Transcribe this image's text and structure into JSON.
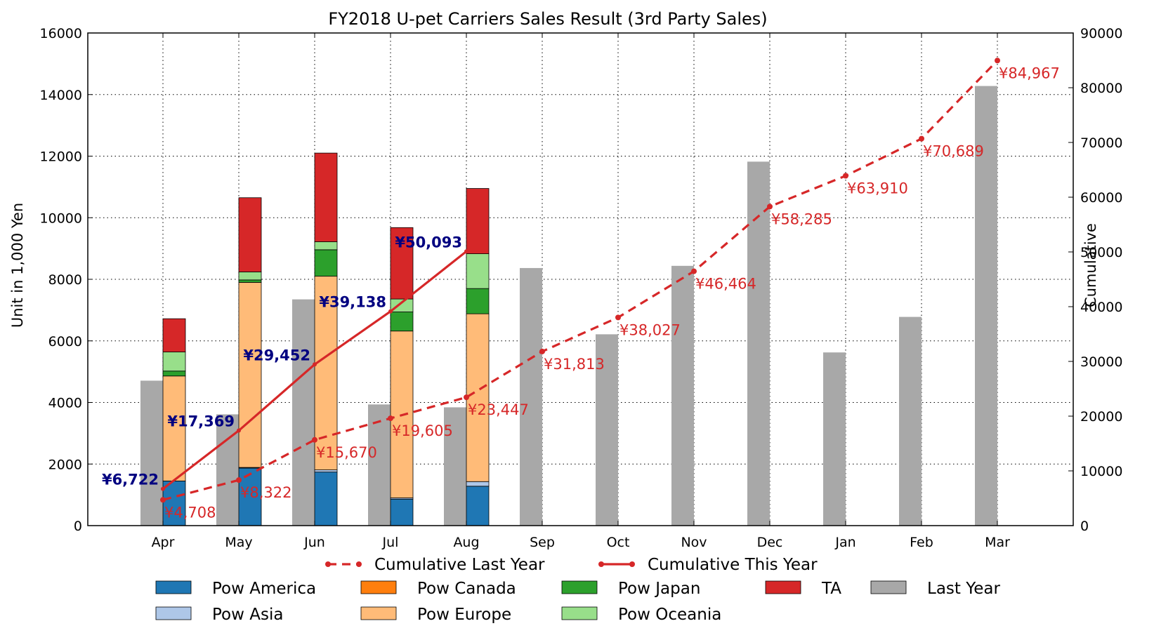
{
  "chart_data": {
    "type": "bar",
    "title": "FY2018 U-pet Carriers Sales Result (3rd Party Sales)",
    "ylabel": "Unit in 1,000 Yen",
    "y2label": "Cumulative",
    "ylim": [
      0,
      16000
    ],
    "y2lim": [
      0,
      90000
    ],
    "yticks": [
      "0",
      "2000",
      "4000",
      "6000",
      "8000",
      "10000",
      "12000",
      "14000",
      "16000"
    ],
    "y2ticks": [
      "0",
      "10000",
      "20000",
      "30000",
      "40000",
      "50000",
      "60000",
      "70000",
      "80000",
      "90000"
    ],
    "grid": true,
    "categories": [
      "Apr",
      "May",
      "Jun",
      "Jul",
      "Aug",
      "Sep",
      "Oct",
      "Nov",
      "Dec",
      "Jan",
      "Feb",
      "Mar"
    ],
    "last_year": {
      "name": "Last Year",
      "color": "#a8a8a8",
      "values": [
        4708,
        3614,
        7348,
        3935,
        3842,
        8366,
        6214,
        8437,
        11821,
        5625,
        6779,
        14278
      ]
    },
    "stack_series": [
      {
        "name": "Pow America",
        "color": "#1f77b4",
        "values": [
          1450,
          1870,
          1740,
          860,
          1280
        ]
      },
      {
        "name": "Pow Asia",
        "color": "#aec7e8",
        "values": [
          0,
          20,
          70,
          40,
          150
        ]
      },
      {
        "name": "Pow Canada",
        "color": "#ff7f0e",
        "values": [
          0,
          0,
          0,
          0,
          0
        ]
      },
      {
        "name": "Pow Europe",
        "color": "#ffbb78",
        "values": [
          3410,
          6010,
          6290,
          5420,
          5450
        ]
      },
      {
        "name": "Pow Japan",
        "color": "#2ca02c",
        "values": [
          160,
          80,
          860,
          620,
          820
        ]
      },
      {
        "name": "Pow Oceania",
        "color": "#98df8a",
        "values": [
          620,
          260,
          260,
          420,
          1130
        ]
      },
      {
        "name": "TA",
        "color": "#d62728",
        "values": [
          1080,
          2410,
          2880,
          2320,
          2120
        ]
      }
    ],
    "cumulative_last_year": {
      "name": "Cumulative Last Year",
      "color": "#d62728",
      "values": [
        4708,
        8322,
        15670,
        19605,
        23447,
        31813,
        38027,
        46464,
        58285,
        63910,
        70689,
        84967
      ],
      "labels": [
        "¥4,708",
        "¥8,322",
        "¥15,670",
        "¥19,605",
        "¥23,447",
        "¥31,813",
        "¥38,027",
        "¥46,464",
        "¥58,285",
        "¥63,910",
        "¥70,689",
        "¥84,967"
      ]
    },
    "cumulative_this_year": {
      "name": "Cumulative This Year",
      "color": "#d62728",
      "label_color": "#000080",
      "values": [
        6722,
        17369,
        29452,
        39138,
        50093
      ],
      "labels": [
        "¥6,722",
        "¥17,369",
        "¥29,452",
        "¥39,138",
        "¥50,093"
      ]
    },
    "legend": {
      "placement": "bottom",
      "line_items": [
        "Cumulative Last Year",
        "Cumulative This Year"
      ],
      "box_items": [
        "Pow America",
        "Pow Canada",
        "Pow Japan",
        "TA",
        "Last Year",
        "Pow Asia",
        "Pow Europe",
        "Pow Oceania"
      ]
    }
  }
}
